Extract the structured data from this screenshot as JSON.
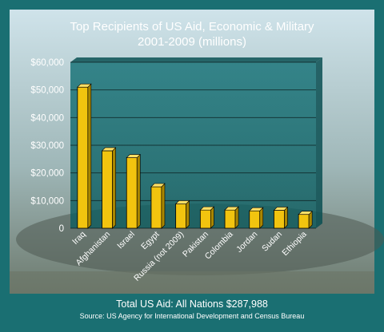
{
  "colors": {
    "frame": "#1a6f72",
    "plot_fill": "#0f6a6e",
    "bar": "#f2c40f",
    "bar_dark": "#a98600",
    "bar_top": "#ffe066",
    "text": "#ffffff"
  },
  "chart_data": {
    "type": "bar",
    "title_lines": [
      "Top Recipients of US Aid, Economic & Military",
      "2001-2009 (millions)"
    ],
    "categories": [
      "Iraq",
      "Afghanistan",
      "Israel",
      "Egypt",
      "Russia (not 2009)",
      "Pakistan",
      "Colombia",
      "Jordan",
      "Sudan",
      "Ethiopia"
    ],
    "values": [
      51000,
      28000,
      25500,
      15000,
      8800,
      6600,
      6600,
      6300,
      6500,
      5000
    ],
    "ylim": [
      0,
      60000
    ],
    "y_ticks": [
      0,
      10000,
      20000,
      30000,
      40000,
      50000,
      60000
    ],
    "y_tick_labels": [
      "0",
      "$10,000",
      "$20,000",
      "$30,000",
      "$40,000",
      "$50,000",
      "$60,000"
    ],
    "grid": true,
    "legend": "none"
  },
  "footer": {
    "total": "Total US Aid: All Nations $287,988",
    "source": "Source: US Agency for International Development and Census Bureau"
  }
}
